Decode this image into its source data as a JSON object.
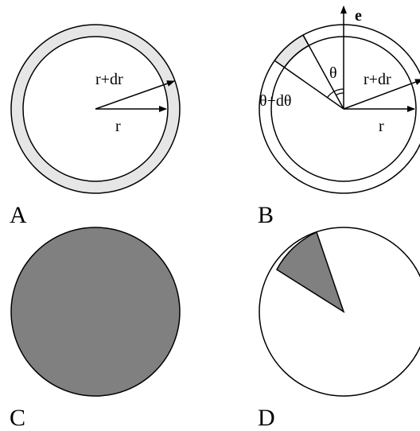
{
  "panels": {
    "a": {
      "letter": "A",
      "outer_label": "r+dr",
      "inner_label": "r"
    },
    "b": {
      "letter": "B",
      "axis_label": "e",
      "theta_label": "θ",
      "theta_dtheta_label": "θ+dθ",
      "outer_label": "r+dr",
      "inner_label": "r"
    },
    "c": {
      "letter": "C"
    },
    "d": {
      "letter": "D"
    }
  },
  "colors": {
    "ring_fill": "#e6e6e6",
    "disk_fill": "#808080",
    "sector_fill": "#808080",
    "line": "#000000",
    "background": "#ffffff"
  }
}
